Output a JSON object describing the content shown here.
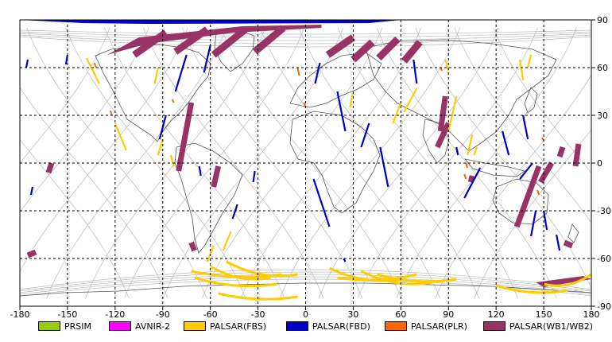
{
  "map": {
    "lon_ticks": [
      "-180",
      "-150",
      "-120",
      "-90",
      "-60",
      "-30",
      "0",
      "30",
      "60",
      "90",
      "120",
      "150",
      "180"
    ],
    "lat_ticks": [
      "90",
      "60",
      "30",
      "0",
      "-30",
      "-60",
      "-90"
    ]
  },
  "legend": [
    {
      "label": "PRSIM",
      "color": "#99cc00"
    },
    {
      "label": "AVNIR-2",
      "color": "#ff00ff"
    },
    {
      "label": "PALSAR(FBS)",
      "color": "#ffcc00"
    },
    {
      "label": "PALSAR(FBD)",
      "color": "#0000cc"
    },
    {
      "label": "PALSAR(PLR)",
      "color": "#ff6600"
    },
    {
      "label": "PALSAR(WB1/WB2)",
      "color": "#993366"
    }
  ]
}
